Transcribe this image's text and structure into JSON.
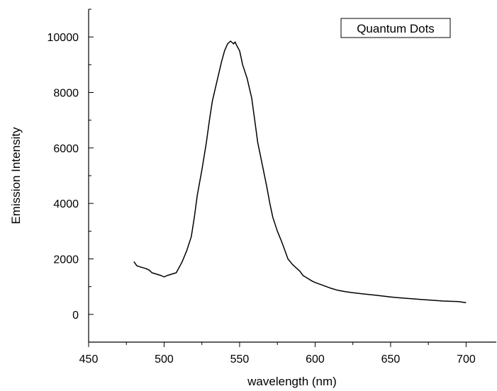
{
  "chart_data": {
    "type": "line",
    "xlabel": "wavelength (nm)",
    "ylabel": "Emission Intensity",
    "xlim": [
      450,
      720
    ],
    "ylim": [
      -1000,
      11000
    ],
    "xticks": [
      450,
      500,
      550,
      600,
      650,
      700
    ],
    "yticks": [
      0,
      2000,
      4000,
      6000,
      8000,
      10000
    ],
    "legend": {
      "label": "Quantum Dots",
      "placement": "top-right"
    },
    "grid": false,
    "series": [
      {
        "name": "Quantum Dots",
        "x": [
          480,
          482,
          485,
          488,
          490,
          492,
          495,
          498,
          500,
          502,
          505,
          508,
          510,
          512,
          515,
          518,
          520,
          522,
          525,
          528,
          530,
          532,
          535,
          538,
          540,
          542,
          544,
          545,
          546,
          547,
          548,
          550,
          552,
          555,
          558,
          560,
          562,
          565,
          568,
          570,
          572,
          575,
          578,
          580,
          582,
          585,
          588,
          590,
          592,
          595,
          598,
          600,
          605,
          610,
          615,
          620,
          625,
          630,
          635,
          640,
          645,
          650,
          655,
          660,
          665,
          670,
          675,
          680,
          685,
          690,
          695,
          700
        ],
        "values": [
          1900,
          1750,
          1700,
          1650,
          1600,
          1500,
          1450,
          1400,
          1350,
          1400,
          1450,
          1500,
          1700,
          1900,
          2300,
          2800,
          3500,
          4300,
          5200,
          6200,
          7000,
          7700,
          8400,
          9100,
          9500,
          9750,
          9850,
          9800,
          9750,
          9820,
          9700,
          9500,
          9000,
          8500,
          7800,
          7000,
          6200,
          5400,
          4600,
          4000,
          3500,
          3000,
          2600,
          2300,
          2000,
          1800,
          1650,
          1550,
          1400,
          1300,
          1200,
          1150,
          1050,
          950,
          870,
          820,
          780,
          750,
          720,
          690,
          660,
          630,
          600,
          580,
          560,
          540,
          520,
          500,
          480,
          470,
          460,
          420
        ]
      }
    ]
  }
}
